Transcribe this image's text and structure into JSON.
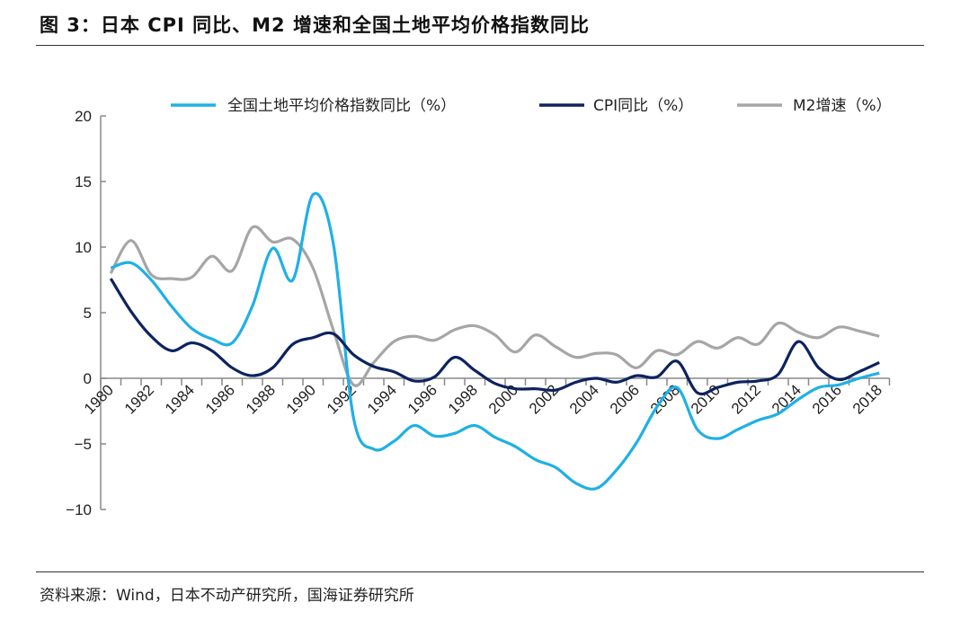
{
  "title": "图 3：日本 CPI 同比、M2 增速和全国土地平均价格指数同比",
  "source": "资料来源：Wind，日本不动产研究所，国海证券研究所",
  "chart_data": {
    "type": "line",
    "x": [
      1980,
      1981,
      1982,
      1983,
      1984,
      1985,
      1986,
      1987,
      1988,
      1989,
      1990,
      1991,
      1992,
      1993,
      1994,
      1995,
      1996,
      1997,
      1998,
      1999,
      2000,
      2001,
      2002,
      2003,
      2004,
      2005,
      2006,
      2007,
      2008,
      2009,
      2010,
      2011,
      2012,
      2013,
      2014,
      2015,
      2016,
      2017,
      2018
    ],
    "x_tick_labels": [
      "1980",
      "1982",
      "1984",
      "1986",
      "1988",
      "1990",
      "1992",
      "1994",
      "1996",
      "1998",
      "2000",
      "2002",
      "2004",
      "2006",
      "2008",
      "2010",
      "2012",
      "2014",
      "2016",
      "2018"
    ],
    "y_ticks": [
      "20",
      "15",
      "10",
      "5",
      "0",
      "−5",
      "−10"
    ],
    "ylim": [
      -10,
      20
    ],
    "grid": false,
    "legend": "top",
    "series": [
      {
        "name": "全国土地平均价格指数同比（%）",
        "color": "#1fb0e6",
        "values": [
          8.4,
          8.8,
          7.5,
          5.5,
          3.8,
          3.0,
          2.7,
          5.5,
          9.9,
          7.5,
          14.0,
          10.3,
          -3.0,
          -5.4,
          -4.8,
          -3.6,
          -4.4,
          -4.2,
          -3.6,
          -4.5,
          -5.2,
          -6.2,
          -6.8,
          -8.0,
          -8.4,
          -7.0,
          -4.9,
          -2.2,
          -0.7,
          -3.9,
          -4.6,
          -3.9,
          -3.2,
          -2.7,
          -1.6,
          -0.7,
          -0.5,
          0.0,
          0.4
        ]
      },
      {
        "name": "CPI同比（%）",
        "color": "#0d2360",
        "values": [
          7.6,
          5.1,
          3.2,
          2.1,
          2.7,
          2.1,
          0.8,
          0.2,
          0.8,
          2.6,
          3.1,
          3.4,
          1.8,
          0.9,
          0.5,
          -0.2,
          0.1,
          1.6,
          0.6,
          -0.4,
          -0.8,
          -0.8,
          -0.9,
          -0.3,
          0.0,
          -0.3,
          0.2,
          0.1,
          1.3,
          -1.1,
          -0.7,
          -0.3,
          -0.2,
          0.3,
          2.8,
          0.8,
          -0.1,
          0.5,
          1.2
        ]
      },
      {
        "name": "M2增速（%）",
        "color": "#a6a6a6",
        "values": [
          8.0,
          10.5,
          7.9,
          7.6,
          7.7,
          9.3,
          8.2,
          11.5,
          10.4,
          10.6,
          8.4,
          3.7,
          -0.5,
          1.2,
          2.8,
          3.2,
          2.9,
          3.7,
          4.0,
          3.3,
          2.0,
          3.3,
          2.4,
          1.6,
          1.9,
          1.8,
          0.8,
          2.1,
          1.8,
          2.8,
          2.3,
          3.1,
          2.6,
          4.2,
          3.5,
          3.1,
          3.9,
          3.6,
          3.2
        ]
      }
    ]
  }
}
